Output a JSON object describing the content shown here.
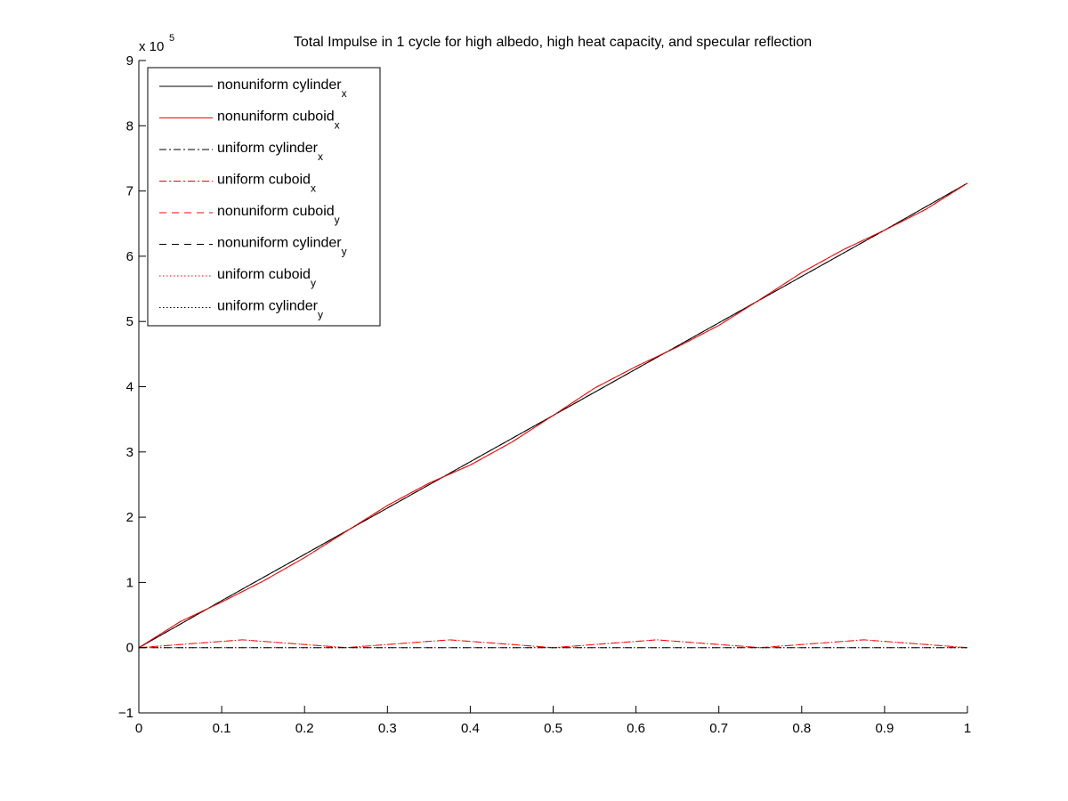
{
  "chart_data": {
    "type": "line",
    "title": "Total Impulse in 1 cycle for high albedo, high heat capacity, and specular reflection",
    "xlabel": "",
    "ylabel": "",
    "xlim": [
      0,
      1
    ],
    "ylim": [
      -1,
      9
    ],
    "y_multiplier_label": "x 10",
    "y_multiplier_exponent": "5",
    "x_ticks": [
      "0",
      "0.1",
      "0.2",
      "0.3",
      "0.4",
      "0.5",
      "0.6",
      "0.7",
      "0.8",
      "0.9",
      "1"
    ],
    "y_ticks": [
      "-1",
      "0",
      "1",
      "2",
      "3",
      "4",
      "5",
      "6",
      "7",
      "8",
      "9"
    ],
    "legend_position": "top-left",
    "grid": false,
    "series": [
      {
        "name": "nonuniform cylinder",
        "subscript": "x",
        "color": "#000000",
        "style": "solid",
        "x": [
          0,
          0.1,
          0.2,
          0.3,
          0.4,
          0.5,
          0.6,
          0.7,
          0.8,
          0.9,
          1
        ],
        "values": [
          0,
          0.72,
          1.43,
          2.14,
          2.85,
          3.56,
          4.27,
          4.98,
          5.69,
          6.4,
          7.12
        ]
      },
      {
        "name": "nonuniform cuboid",
        "subscript": "x",
        "color": "#ff0000",
        "style": "solid",
        "x": [
          0,
          0.05,
          0.1,
          0.15,
          0.2,
          0.25,
          0.3,
          0.35,
          0.4,
          0.45,
          0.5,
          0.55,
          0.6,
          0.65,
          0.7,
          0.75,
          0.8,
          0.85,
          0.9,
          0.95,
          1
        ],
        "values": [
          0,
          0.4,
          0.7,
          1.02,
          1.38,
          1.78,
          2.18,
          2.52,
          2.8,
          3.15,
          3.56,
          3.98,
          4.31,
          4.61,
          4.94,
          5.34,
          5.75,
          6.1,
          6.4,
          6.72,
          7.12
        ]
      },
      {
        "name": "uniform cylinder",
        "subscript": "x",
        "color": "#000000",
        "style": "dashdot",
        "x": [
          0,
          0.1,
          0.2,
          0.3,
          0.4,
          0.5,
          0.6,
          0.7,
          0.8,
          0.9,
          1
        ],
        "values": [
          0,
          0.72,
          1.43,
          2.14,
          2.85,
          3.56,
          4.27,
          4.98,
          5.69,
          6.4,
          7.12
        ]
      },
      {
        "name": "uniform cuboid",
        "subscript": "x",
        "color": "#ff0000",
        "style": "dashdot",
        "x": [
          0,
          0.05,
          0.1,
          0.15,
          0.2,
          0.25,
          0.3,
          0.35,
          0.4,
          0.45,
          0.5,
          0.55,
          0.6,
          0.65,
          0.7,
          0.75,
          0.8,
          0.85,
          0.9,
          0.95,
          1
        ],
        "values": [
          0,
          0.4,
          0.7,
          1.02,
          1.38,
          1.78,
          2.18,
          2.52,
          2.8,
          3.15,
          3.56,
          3.98,
          4.31,
          4.61,
          4.94,
          5.34,
          5.75,
          6.1,
          6.4,
          6.72,
          7.12
        ]
      },
      {
        "name": "nonuniform cuboid",
        "subscript": "y",
        "color": "#ff0000",
        "style": "dashed",
        "x": [
          0,
          0.0625,
          0.125,
          0.1875,
          0.25,
          0.3125,
          0.375,
          0.4375,
          0.5,
          0.5625,
          0.625,
          0.6875,
          0.75,
          0.8125,
          0.875,
          0.9375,
          1
        ],
        "values": [
          0,
          0.06,
          0.12,
          0.06,
          0,
          0.06,
          0.12,
          0.06,
          0,
          0.06,
          0.12,
          0.06,
          0,
          0.06,
          0.12,
          0.06,
          0
        ]
      },
      {
        "name": "nonuniform cylinder",
        "subscript": "y",
        "color": "#000000",
        "style": "dashed",
        "x": [
          0,
          1
        ],
        "values": [
          0,
          0
        ]
      },
      {
        "name": "uniform cuboid",
        "subscript": "y",
        "color": "#ff0000",
        "style": "dotted",
        "x": [
          0,
          0.0625,
          0.125,
          0.1875,
          0.25,
          0.3125,
          0.375,
          0.4375,
          0.5,
          0.5625,
          0.625,
          0.6875,
          0.75,
          0.8125,
          0.875,
          0.9375,
          1
        ],
        "values": [
          0,
          0.06,
          0.12,
          0.06,
          0,
          0.06,
          0.12,
          0.06,
          0,
          0.06,
          0.12,
          0.06,
          0,
          0.06,
          0.12,
          0.06,
          0
        ]
      },
      {
        "name": "uniform cylinder",
        "subscript": "y",
        "color": "#000000",
        "style": "dotted",
        "x": [
          0,
          1
        ],
        "values": [
          0,
          0
        ]
      }
    ]
  }
}
